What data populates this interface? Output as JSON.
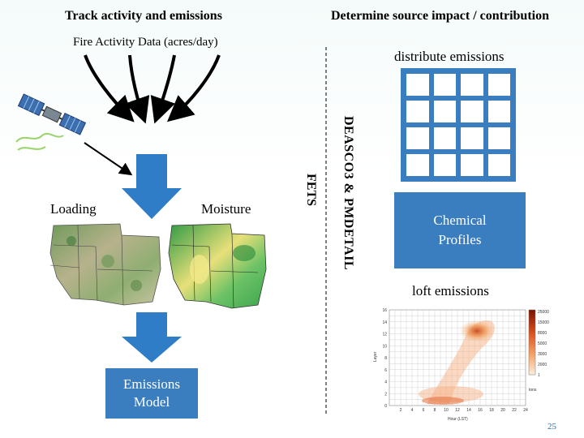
{
  "header": {
    "left_title": "Track activity and emissions",
    "right_title": "Determine source impact / contribution"
  },
  "left": {
    "fire_activity_label": "Fire Activity Data (acres/day)",
    "loading_label": "Loading",
    "moisture_label": "Moisture",
    "emissions_model_label": "Emissions Model",
    "fets_label": "FETS"
  },
  "middle": {
    "vertical_label": "DEASCO3 & PMDETAIL"
  },
  "right": {
    "distribute_label": "distribute emissions",
    "chemical_profiles_label": "Chemical Profiles",
    "loft_label": "loft emissions",
    "plot": {
      "ylabel": "Layer",
      "xlabel": "Hour (LST)",
      "y_ticks": [
        "16",
        "14",
        "12",
        "10",
        "8",
        "6",
        "4",
        "2",
        "0"
      ],
      "x_ticks": [
        "2",
        "4",
        "6",
        "8",
        "10",
        "12",
        "14",
        "16",
        "18",
        "20",
        "22",
        "24"
      ],
      "colorbar_ticks": [
        "25000",
        "15000",
        "8000",
        "5000",
        "3000",
        "2000",
        "1"
      ],
      "colorbar_unit": "tons"
    }
  },
  "footer": {
    "page_number": "25"
  },
  "colors": {
    "accent_blue": "#3b7ec0",
    "arrow_blue": "#2f7dc6"
  }
}
